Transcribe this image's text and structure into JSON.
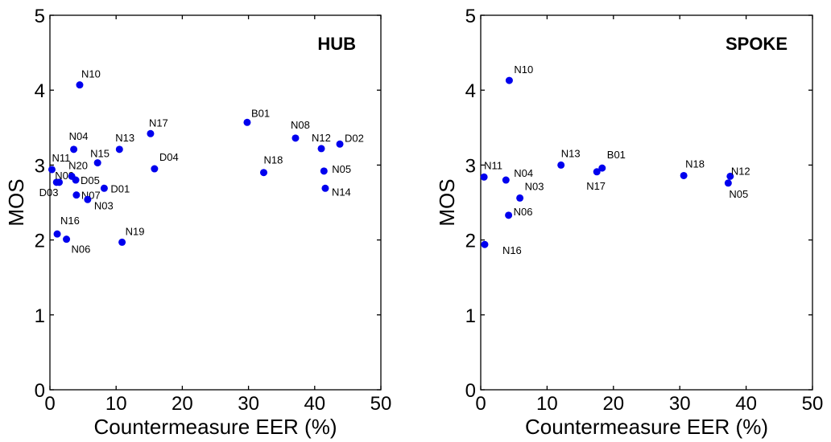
{
  "chart_data": [
    {
      "type": "scatter",
      "title": "HUB",
      "xlabel": "Countermeasure EER (%)",
      "ylabel": "MOS",
      "xlim": [
        0,
        50
      ],
      "ylim": [
        0,
        5
      ],
      "xticks": [
        "0",
        "10",
        "20",
        "30",
        "40",
        "50"
      ],
      "yticks": [
        "0",
        "1",
        "2",
        "3",
        "4",
        "5"
      ],
      "grid": false,
      "color": "#0000ee",
      "points": [
        {
          "label": "N10",
          "x": 4.5,
          "y": 4.07
        },
        {
          "label": "N04",
          "x": 3.6,
          "y": 3.21
        },
        {
          "label": "N17",
          "x": 15.2,
          "y": 3.42
        },
        {
          "label": "N13",
          "x": 10.5,
          "y": 3.21
        },
        {
          "label": "N15",
          "x": 7.2,
          "y": 3.03
        },
        {
          "label": "N11",
          "x": 0.3,
          "y": 2.94
        },
        {
          "label": "N09",
          "x": 1.0,
          "y": 2.77
        },
        {
          "label": "D03",
          "x": 1.4,
          "y": 2.77
        },
        {
          "label": "N20",
          "x": 3.3,
          "y": 2.85
        },
        {
          "label": "D05",
          "x": 3.9,
          "y": 2.8
        },
        {
          "label": "N07",
          "x": 4.0,
          "y": 2.6
        },
        {
          "label": "D01",
          "x": 8.2,
          "y": 2.69
        },
        {
          "label": "N03",
          "x": 5.7,
          "y": 2.54
        },
        {
          "label": "D04",
          "x": 15.8,
          "y": 2.95
        },
        {
          "label": "N16",
          "x": 1.1,
          "y": 2.08
        },
        {
          "label": "N06",
          "x": 2.5,
          "y": 2.01
        },
        {
          "label": "N19",
          "x": 10.9,
          "y": 1.97
        },
        {
          "label": "B01",
          "x": 29.8,
          "y": 3.57
        },
        {
          "label": "N08",
          "x": 37.1,
          "y": 3.36
        },
        {
          "label": "N12",
          "x": 41.0,
          "y": 3.22
        },
        {
          "label": "D02",
          "x": 43.8,
          "y": 3.28
        },
        {
          "label": "N18",
          "x": 32.3,
          "y": 2.9
        },
        {
          "label": "N05",
          "x": 41.4,
          "y": 2.92
        },
        {
          "label": "N14",
          "x": 41.6,
          "y": 2.69
        }
      ]
    },
    {
      "type": "scatter",
      "title": "SPOKE",
      "xlabel": "Countermeasure EER (%)",
      "ylabel": "MOS",
      "xlim": [
        0,
        50
      ],
      "ylim": [
        0,
        5
      ],
      "xticks": [
        "0",
        "10",
        "20",
        "30",
        "40",
        "50"
      ],
      "yticks": [
        "0",
        "1",
        "2",
        "3",
        "4",
        "5"
      ],
      "grid": false,
      "color": "#0000ee",
      "points": [
        {
          "label": "N10",
          "x": 4.3,
          "y": 4.13
        },
        {
          "label": "N11",
          "x": 0.5,
          "y": 2.84
        },
        {
          "label": "N04",
          "x": 3.8,
          "y": 2.8
        },
        {
          "label": "N13",
          "x": 12.1,
          "y": 3.0
        },
        {
          "label": "B01",
          "x": 18.3,
          "y": 2.96
        },
        {
          "label": "N17",
          "x": 17.5,
          "y": 2.91
        },
        {
          "label": "N03",
          "x": 5.9,
          "y": 2.56
        },
        {
          "label": "N06",
          "x": 4.2,
          "y": 2.33
        },
        {
          "label": "N16",
          "x": 0.6,
          "y": 1.94
        },
        {
          "label": "N18",
          "x": 30.6,
          "y": 2.86
        },
        {
          "label": "N12",
          "x": 37.6,
          "y": 2.85
        },
        {
          "label": "N05",
          "x": 37.3,
          "y": 2.76
        }
      ]
    }
  ]
}
